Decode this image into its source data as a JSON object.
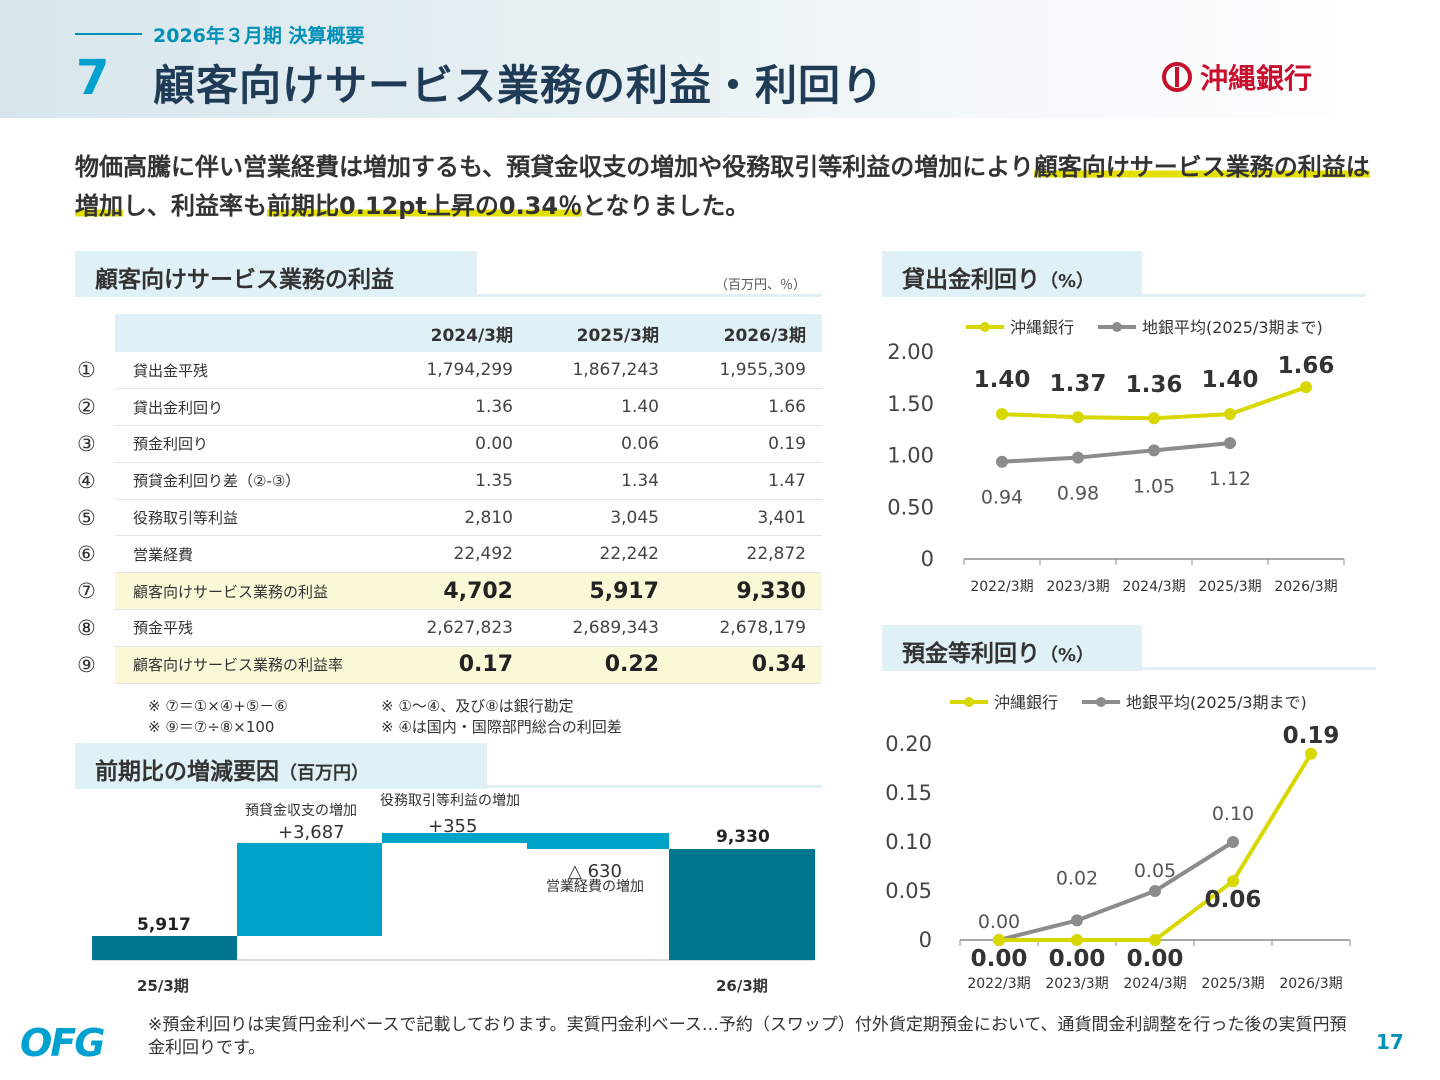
{
  "header": {
    "subtitle": "2026年３月期 決算概要",
    "slide_number": "7",
    "title": "顧客向けサービス業務の利益・利回り",
    "bank_name": "沖縄銀行"
  },
  "lead": {
    "part1": "物価高騰に伴い営業経費は増加するも、預貸金収支の増加や役務取引等利益の増加により",
    "highlight1": "顧客向けサービス業務の利益は増加",
    "part2": "し、利益率も",
    "highlight2": "前期比0.12pt上昇の0.34％",
    "part3": "となりました。"
  },
  "profit_section": {
    "title": "顧客向けサービス業務の利益",
    "unit": "（百万円、％）",
    "columns": [
      "2024/3期",
      "2025/3期",
      "2026/3期"
    ],
    "rows": [
      {
        "no": "①",
        "label": "貸出金平残",
        "values": [
          "1,794,299",
          "1,867,243",
          "1,955,309"
        ],
        "bold": false
      },
      {
        "no": "②",
        "label": "貸出金利回り",
        "values": [
          "1.36",
          "1.40",
          "1.66"
        ],
        "bold": false
      },
      {
        "no": "③",
        "label": "預金利回り",
        "values": [
          "0.00",
          "0.06",
          "0.19"
        ],
        "bold": false
      },
      {
        "no": "④",
        "label": "預貸金利回り差（②-③）",
        "values": [
          "1.35",
          "1.34",
          "1.47"
        ],
        "bold": false
      },
      {
        "no": "⑤",
        "label": "役務取引等利益",
        "values": [
          "2,810",
          "3,045",
          "3,401"
        ],
        "bold": false
      },
      {
        "no": "⑥",
        "label": "営業経費",
        "values": [
          "22,492",
          "22,242",
          "22,872"
        ],
        "bold": false
      },
      {
        "no": "⑦",
        "label": "顧客向けサービス業務の利益",
        "values": [
          "4,702",
          "5,917",
          "9,330"
        ],
        "bold": true
      },
      {
        "no": "⑧",
        "label": "預金平残",
        "values": [
          "2,627,823",
          "2,689,343",
          "2,678,179"
        ],
        "bold": false
      },
      {
        "no": "⑨",
        "label": "顧客向けサービス業務の利益率",
        "values": [
          "0.17",
          "0.22",
          "0.34"
        ],
        "bold": true
      }
    ],
    "notes": [
      [
        "※ ⑦＝①×④+⑤－⑥",
        "※ ①～④、及び⑧は銀行勘定"
      ],
      [
        "※ ⑨＝⑦÷⑧×100",
        "※ ④は国内・国際部門総合の利回差"
      ]
    ]
  },
  "waterfall_section": {
    "title": "前期比の増減要因",
    "unit": "（百万円）",
    "start_label": "25/3期",
    "start_value": "5,917",
    "end_label": "26/3期",
    "end_value": "9,330",
    "steps": [
      {
        "name": "預貸金収支の増加",
        "value": "+3,687"
      },
      {
        "name": "役務取引等利益の増加",
        "value": "+355"
      },
      {
        "name": "営業経費の増加",
        "value": "△ 630"
      }
    ]
  },
  "chart_data": [
    {
      "type": "line",
      "title": "貸出金利回り",
      "unit": "（%）",
      "categories": [
        "2022/3期",
        "2023/3期",
        "2024/3期",
        "2025/3期",
        "2026/3期"
      ],
      "ylim": [
        0,
        2.0
      ],
      "yticks": [
        "0",
        "0.50",
        "1.00",
        "1.50",
        "2.00"
      ],
      "legend_position": "top",
      "series": [
        {
          "name": "沖縄銀行",
          "color": "#d8d800",
          "values": [
            1.4,
            1.37,
            1.36,
            1.4,
            1.66
          ],
          "labels": [
            "1.40",
            "1.37",
            "1.36",
            "1.40",
            "1.66"
          ]
        },
        {
          "name": "地銀平均(2025/3期まで)",
          "color": "#8c8c8c",
          "values": [
            0.94,
            0.98,
            1.05,
            1.12,
            null
          ],
          "labels": [
            "0.94",
            "0.98",
            "1.05",
            "1.12",
            ""
          ]
        }
      ]
    },
    {
      "type": "line",
      "title": "預金等利回り",
      "unit": "（%）",
      "categories": [
        "2022/3期",
        "2023/3期",
        "2024/3期",
        "2025/3期",
        "2026/3期"
      ],
      "ylim": [
        0,
        0.2
      ],
      "yticks": [
        "0",
        "0.05",
        "0.10",
        "0.15",
        "0.20"
      ],
      "legend_position": "top",
      "series": [
        {
          "name": "沖縄銀行",
          "color": "#d8d800",
          "values": [
            0.0,
            0.0,
            0.0,
            0.06,
            0.19
          ],
          "labels": [
            "0.00",
            "0.00",
            "0.00",
            "0.06",
            "0.19"
          ]
        },
        {
          "name": "地銀平均(2025/3期まで)",
          "color": "#8c8c8c",
          "values": [
            0.0,
            0.02,
            0.05,
            0.1,
            null
          ],
          "labels": [
            "0.00",
            "0.02",
            "0.05",
            "0.10",
            ""
          ]
        }
      ]
    }
  ],
  "footer": {
    "note": "※預金利回りは実質円金利ベースで記載しております。実質円金利ベース…予約（スワップ）付外貨定期預金において、通貨間金利調整を行った後の実質円預金利回りです。",
    "page": "17",
    "group_logo": "OFG"
  }
}
